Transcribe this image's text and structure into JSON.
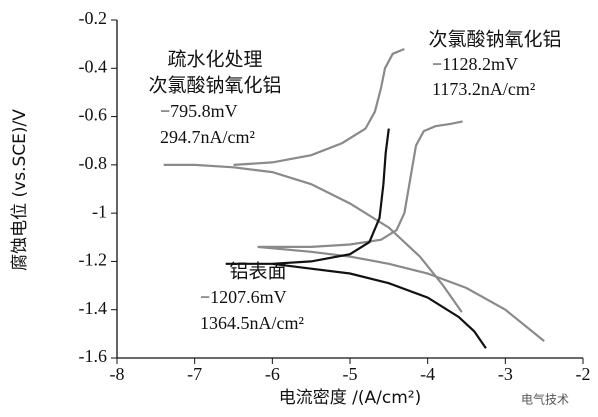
{
  "chart_data": {
    "type": "line",
    "xlabel": "电流密度 /(A/cm²)",
    "ylabel": "腐蚀电位 (vs.SCE)/V",
    "xlim": [
      -8,
      -2
    ],
    "xticks": [
      -8,
      -7,
      -6,
      -5,
      -4,
      -3,
      -2
    ],
    "ylim": [
      -1.6,
      -0.2
    ],
    "yticks": [
      -1.6,
      -1.4,
      -1.2,
      -1.0,
      -0.8,
      -0.6,
      -0.4,
      -0.2
    ],
    "series": [
      {
        "label_lines": [
          "疏水化处理",
          "次氯酸钠氧化铝"
        ],
        "ecorr_label": "−795.8mV",
        "icorr_label": "294.7nA/cm²",
        "color": "#8a8a8a",
        "x": [
          -3.56,
          -3.8,
          -4.1,
          -4.5,
          -5.0,
          -5.5,
          -6.0,
          -6.5,
          -7.0,
          -7.4,
          null,
          -6.5,
          -6.0,
          -5.5,
          -5.1,
          -4.8,
          -4.68,
          -4.6,
          -4.55,
          -4.45,
          -4.3
        ],
        "y": [
          -1.41,
          -1.3,
          -1.18,
          -1.06,
          -0.96,
          -0.88,
          -0.83,
          -0.81,
          -0.8,
          -0.8,
          null,
          -0.8,
          -0.79,
          -0.76,
          -0.71,
          -0.65,
          -0.58,
          -0.48,
          -0.4,
          -0.34,
          -0.32
        ]
      },
      {
        "label_lines": [
          "次氯酸钠氧化铝"
        ],
        "ecorr_label": "−1128.2mV",
        "icorr_label": "1173.2nA/cm²",
        "color": "#8a8a8a",
        "x": [
          -2.5,
          -3.0,
          -3.5,
          -4.0,
          -4.5,
          -5.0,
          -5.5,
          -6.19,
          null,
          -6.19,
          -5.5,
          -5.0,
          -4.6,
          -4.4,
          -4.3,
          -4.22,
          -4.15,
          -4.05,
          -3.9,
          -3.7,
          -3.55
        ],
        "y": [
          -1.53,
          -1.4,
          -1.31,
          -1.25,
          -1.21,
          -1.18,
          -1.16,
          -1.14,
          null,
          -1.14,
          -1.14,
          -1.13,
          -1.11,
          -1.07,
          -1.0,
          -0.85,
          -0.72,
          -0.66,
          -0.64,
          -0.63,
          -0.62
        ]
      },
      {
        "label_lines": [
          "铝表面"
        ],
        "ecorr_label": "−1207.6mV",
        "icorr_label": "1364.5nA/cm²",
        "color": "#111111",
        "x": [
          -3.25,
          -3.4,
          -3.6,
          -4.0,
          -4.5,
          -5.0,
          -5.5,
          -6.0,
          -6.6,
          null,
          -6.6,
          -6.0,
          -5.5,
          -5.0,
          -4.75,
          -4.62,
          -4.57,
          -4.54,
          -4.5
        ],
        "y": [
          -1.56,
          -1.49,
          -1.43,
          -1.35,
          -1.29,
          -1.25,
          -1.23,
          -1.21,
          -1.21,
          null,
          -1.21,
          -1.21,
          -1.2,
          -1.17,
          -1.12,
          -1.02,
          -0.88,
          -0.75,
          -0.65
        ]
      }
    ],
    "watermark": "电气技术"
  }
}
